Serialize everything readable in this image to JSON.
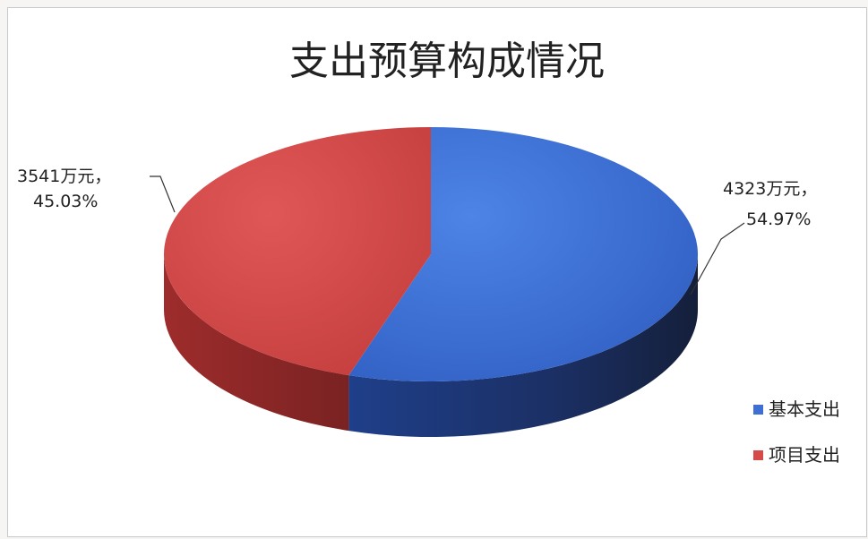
{
  "chart_data": {
    "type": "pie",
    "title": "支出预算构成情况",
    "series": [
      {
        "name": "基本支出",
        "value": 4323,
        "unit": "万元",
        "percent": "54.97%",
        "color": "#3f6fd4"
      },
      {
        "name": "项目支出",
        "value": 3541,
        "unit": "万元",
        "percent": "45.03%",
        "color": "#d64a4a"
      }
    ],
    "data_labels": [
      {
        "line1": "4323万元，",
        "line2": "54.97%"
      },
      {
        "line1": "3541万元，",
        "line2": "45.03%"
      }
    ],
    "legend": {
      "placement": "right",
      "items": [
        "基本支出",
        "项目支出"
      ]
    },
    "style": "3d"
  }
}
